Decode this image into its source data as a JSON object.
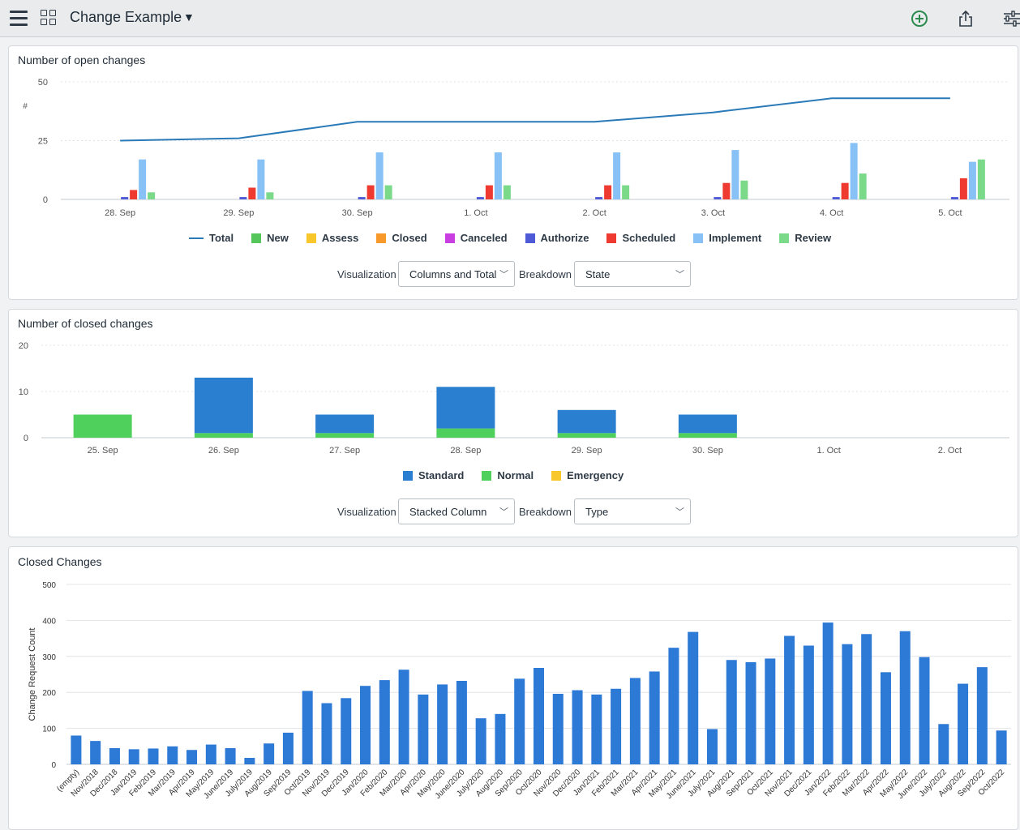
{
  "header": {
    "title": "Change Example",
    "icons": [
      "menu-icon",
      "grid-icon",
      "chevron-down-icon",
      "add-circle-icon",
      "share-icon",
      "filter-sliders-icon"
    ],
    "add_color": "#2d8a4e"
  },
  "colors": {
    "total": "#2a7ab8",
    "new": "#55c65a",
    "assess": "#f7c72b",
    "closed": "#f79a2b",
    "canceled": "#c93ee0",
    "authorize": "#4e5ad6",
    "scheduled": "#ee3a30",
    "implement": "#88c1f5",
    "review": "#7bd98a",
    "standard": "#2b7fd0",
    "normal": "#4fd05d",
    "emergency": "#f7c72b",
    "closed_bar": "#2d79d6"
  },
  "panel1": {
    "title": "Number of open changes",
    "visualization_label": "Visualization",
    "visualization_value": "Columns and Total",
    "breakdown_label": "Breakdown",
    "breakdown_value": "State"
  },
  "panel2": {
    "title": "Number of closed changes",
    "visualization_label": "Visualization",
    "visualization_value": "Stacked Column",
    "breakdown_label": "Breakdown",
    "breakdown_value": "Type"
  },
  "panel3": {
    "title": "Closed Changes"
  },
  "chart_data": [
    {
      "type": "bar",
      "title": "Number of open changes",
      "ylabel": "#",
      "ylim": [
        0,
        50
      ],
      "yticks": [
        0,
        25,
        50
      ],
      "grid": true,
      "legend_position": "bottom",
      "categories": [
        "28. Sep",
        "29. Sep",
        "30. Sep",
        "1. Oct",
        "2. Oct",
        "3. Oct",
        "4. Oct",
        "5. Oct"
      ],
      "total": [
        25,
        26,
        33,
        33,
        33,
        37,
        43,
        43
      ],
      "series": [
        {
          "name": "Total",
          "values": [
            25,
            26,
            33,
            33,
            33,
            37,
            43,
            43
          ]
        },
        {
          "name": "New",
          "values": [
            0,
            0,
            0,
            0,
            0,
            0,
            0,
            0
          ]
        },
        {
          "name": "Assess",
          "values": [
            0,
            0,
            0,
            0,
            0,
            0,
            0,
            0
          ]
        },
        {
          "name": "Closed",
          "values": [
            0,
            0,
            0,
            0,
            0,
            0,
            0,
            0
          ]
        },
        {
          "name": "Canceled",
          "values": [
            0,
            0,
            0,
            0,
            0,
            0,
            0,
            0
          ]
        },
        {
          "name": "Authorize",
          "values": [
            1,
            1,
            1,
            1,
            1,
            1,
            1,
            1
          ]
        },
        {
          "name": "Scheduled",
          "values": [
            4,
            5,
            6,
            6,
            6,
            7,
            7,
            9
          ]
        },
        {
          "name": "Implement",
          "values": [
            17,
            17,
            20,
            20,
            20,
            21,
            24,
            16
          ]
        },
        {
          "name": "Review",
          "values": [
            3,
            3,
            6,
            6,
            6,
            8,
            11,
            17
          ]
        }
      ]
    },
    {
      "type": "bar",
      "stacked": true,
      "title": "Number of closed changes",
      "ylim": [
        0,
        20
      ],
      "yticks": [
        0,
        10,
        20
      ],
      "grid": true,
      "legend_position": "bottom",
      "categories": [
        "25. Sep",
        "26. Sep",
        "27. Sep",
        "28. Sep",
        "29. Sep",
        "30. Sep",
        "1. Oct",
        "2. Oct"
      ],
      "series": [
        {
          "name": "Standard",
          "values": [
            0,
            12,
            4,
            9,
            5,
            4,
            0,
            0
          ]
        },
        {
          "name": "Normal",
          "values": [
            5,
            1,
            1,
            2,
            1,
            1,
            0,
            0
          ]
        },
        {
          "name": "Emergency",
          "values": [
            0,
            0,
            0,
            0,
            0,
            0,
            0,
            0
          ]
        }
      ]
    },
    {
      "type": "bar",
      "title": "Closed Changes",
      "ylabel": "Change Request Count",
      "ylim": [
        0,
        500
      ],
      "yticks": [
        0,
        100,
        200,
        300,
        400,
        500
      ],
      "grid": true,
      "categories": [
        "(empty)",
        "Nov/2018",
        "Dec/2018",
        "Jan/2019",
        "Feb/2019",
        "Mar/2019",
        "Apr/2019",
        "May/2019",
        "June/2019",
        "July/2019",
        "Aug/2019",
        "Sep/2019",
        "Oct/2019",
        "Nov/2019",
        "Dec/2019",
        "Jan/2020",
        "Feb/2020",
        "Mar/2020",
        "Apr/2020",
        "May/2020",
        "June/2020",
        "July/2020",
        "Aug/2020",
        "Sep/2020",
        "Oct/2020",
        "Nov/2020",
        "Dec/2020",
        "Jan/2021",
        "Feb/2021",
        "Mar/2021",
        "Apr/2021",
        "May/2021",
        "June/2021",
        "July/2021",
        "Aug/2021",
        "Sep/2021",
        "Oct/2021",
        "Nov/2021",
        "Dec/2021",
        "Jan/2022",
        "Feb/2022",
        "Mar/2022",
        "Apr/2022",
        "May/2022",
        "June/2022",
        "July/2022",
        "Aug/2022",
        "Sep/2022",
        "Oct/2022"
      ],
      "values": [
        80,
        65,
        45,
        42,
        44,
        50,
        40,
        55,
        45,
        18,
        58,
        88,
        204,
        170,
        184,
        218,
        234,
        263,
        194,
        222,
        232,
        128,
        140,
        238,
        268,
        196,
        206,
        194,
        210,
        240,
        258,
        324,
        368,
        98,
        290,
        284,
        294,
        357,
        330,
        394,
        334,
        362,
        256,
        370,
        298,
        112,
        224,
        270,
        94
      ]
    }
  ]
}
